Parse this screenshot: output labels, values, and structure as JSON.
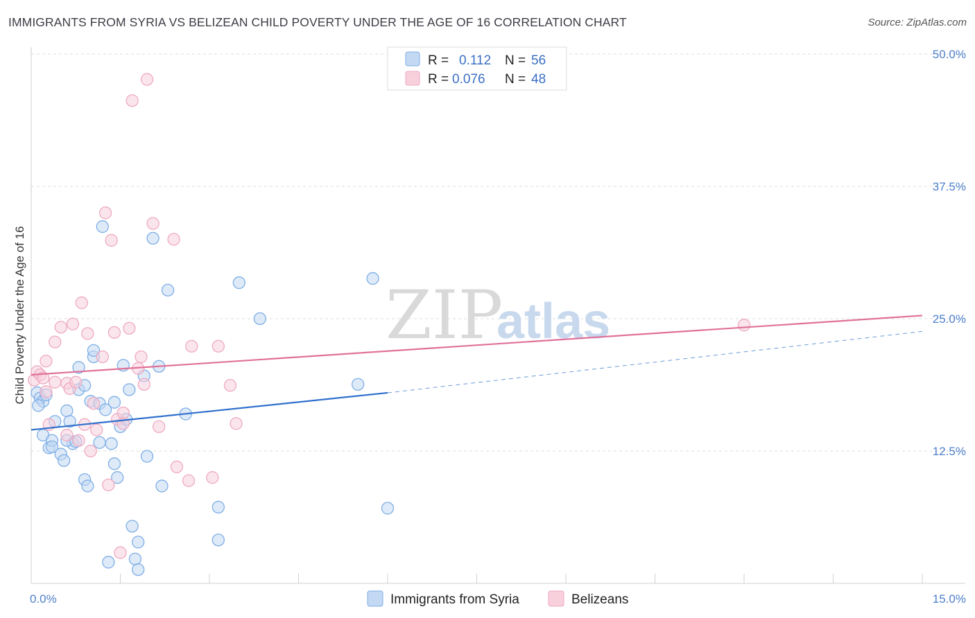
{
  "chart_data": {
    "type": "scatter",
    "title": "IMMIGRANTS FROM SYRIA VS BELIZEAN CHILD POVERTY UNDER THE AGE OF 16 CORRELATION CHART",
    "source": "Source: ZipAtlas.com",
    "ylabel": "Child Poverty Under the Age of 16",
    "xlim": [
      0,
      15
    ],
    "ylim": [
      0,
      50
    ],
    "x_tick_labels": [
      {
        "value": 0,
        "label": "0.0%"
      },
      {
        "value": 15,
        "label": "15.0%"
      }
    ],
    "y_tick_labels": [
      {
        "value": 12.5,
        "label": "12.5%"
      },
      {
        "value": 25,
        "label": "25.0%"
      },
      {
        "value": 37.5,
        "label": "37.5%"
      },
      {
        "value": 50,
        "label": "50.0%"
      }
    ],
    "watermark": {
      "left": "ZIP",
      "right": "atlas"
    },
    "legend_stats": [
      {
        "r_label": "R =",
        "r_value": "0.112",
        "n_label": "N =",
        "n_value": "56"
      },
      {
        "r_label": "R =",
        "r_value": "0.076",
        "n_label": "N =",
        "n_value": "48"
      }
    ],
    "series": [
      {
        "name": "Immigrants from Syria",
        "color": "#7eaee6",
        "fill": "#c2d8f3",
        "line_color": "#2f6fcc",
        "trend": {
          "x0": 0,
          "y0": 14.5,
          "x1": 6.0,
          "y1": 18.0,
          "dash_x1": 15.0,
          "dash_y1": 23.8
        },
        "points": [
          [
            0.1,
            18.0
          ],
          [
            0.15,
            17.5
          ],
          [
            0.2,
            17.2
          ],
          [
            0.12,
            16.8
          ],
          [
            0.25,
            17.8
          ],
          [
            0.2,
            14.0
          ],
          [
            0.3,
            12.8
          ],
          [
            0.35,
            13.5
          ],
          [
            0.4,
            15.3
          ],
          [
            0.35,
            12.9
          ],
          [
            0.5,
            12.2
          ],
          [
            0.55,
            11.6
          ],
          [
            0.6,
            16.3
          ],
          [
            0.7,
            13.2
          ],
          [
            0.6,
            13.5
          ],
          [
            0.75,
            13.4
          ],
          [
            0.8,
            18.3
          ],
          [
            0.8,
            20.4
          ],
          [
            0.9,
            18.7
          ],
          [
            0.9,
            9.8
          ],
          [
            0.95,
            9.2
          ],
          [
            1.0,
            17.2
          ],
          [
            1.05,
            21.4
          ],
          [
            1.05,
            22.0
          ],
          [
            1.15,
            17.0
          ],
          [
            1.15,
            13.3
          ],
          [
            1.2,
            33.7
          ],
          [
            1.25,
            16.4
          ],
          [
            1.35,
            13.2
          ],
          [
            1.4,
            11.3
          ],
          [
            1.4,
            17.1
          ],
          [
            1.45,
            10.0
          ],
          [
            1.5,
            14.8
          ],
          [
            1.55,
            20.6
          ],
          [
            1.6,
            15.5
          ],
          [
            1.65,
            18.3
          ],
          [
            1.7,
            5.4
          ],
          [
            1.75,
            2.3
          ],
          [
            1.8,
            3.9
          ],
          [
            1.8,
            1.3
          ],
          [
            1.9,
            19.6
          ],
          [
            1.95,
            12.0
          ],
          [
            2.05,
            32.6
          ],
          [
            2.15,
            20.5
          ],
          [
            2.2,
            9.2
          ],
          [
            2.3,
            27.7
          ],
          [
            2.6,
            16.0
          ],
          [
            3.15,
            7.2
          ],
          [
            3.15,
            4.1
          ],
          [
            3.5,
            28.4
          ],
          [
            3.85,
            25.0
          ],
          [
            5.5,
            18.8
          ],
          [
            5.75,
            28.8
          ],
          [
            6.0,
            7.1
          ],
          [
            0.65,
            15.3
          ],
          [
            1.3,
            2.0
          ]
        ]
      },
      {
        "name": "Belizeans",
        "color": "#eeaac0",
        "fill": "#f8d0dc",
        "line_color": "#e07099",
        "trend": {
          "x0": 0,
          "y0": 19.7,
          "x1": 15.0,
          "y1": 25.3
        },
        "points": [
          [
            0.05,
            19.2
          ],
          [
            0.1,
            20.0
          ],
          [
            0.15,
            19.7
          ],
          [
            0.2,
            19.4
          ],
          [
            0.25,
            18.1
          ],
          [
            0.25,
            21.0
          ],
          [
            0.3,
            15.0
          ],
          [
            0.4,
            19.0
          ],
          [
            0.4,
            22.8
          ],
          [
            0.5,
            24.2
          ],
          [
            0.6,
            18.9
          ],
          [
            0.6,
            14.0
          ],
          [
            0.65,
            18.4
          ],
          [
            0.7,
            24.5
          ],
          [
            0.75,
            19.0
          ],
          [
            0.8,
            13.5
          ],
          [
            0.85,
            26.5
          ],
          [
            0.9,
            15.0
          ],
          [
            0.95,
            23.6
          ],
          [
            1.0,
            12.5
          ],
          [
            1.05,
            17.0
          ],
          [
            1.1,
            14.5
          ],
          [
            1.2,
            21.4
          ],
          [
            1.25,
            35.0
          ],
          [
            1.3,
            9.3
          ],
          [
            1.35,
            32.4
          ],
          [
            1.4,
            23.7
          ],
          [
            1.45,
            15.5
          ],
          [
            1.5,
            2.9
          ],
          [
            1.55,
            16.1
          ],
          [
            1.55,
            15.1
          ],
          [
            1.65,
            24.1
          ],
          [
            1.7,
            45.6
          ],
          [
            1.8,
            20.3
          ],
          [
            1.85,
            21.4
          ],
          [
            1.9,
            18.8
          ],
          [
            1.95,
            47.6
          ],
          [
            2.05,
            34.0
          ],
          [
            2.15,
            14.8
          ],
          [
            2.4,
            32.5
          ],
          [
            2.45,
            11.0
          ],
          [
            2.65,
            9.7
          ],
          [
            2.7,
            22.4
          ],
          [
            3.05,
            10.0
          ],
          [
            3.15,
            22.4
          ],
          [
            3.35,
            18.7
          ],
          [
            3.45,
            15.1
          ],
          [
            12.0,
            24.4
          ]
        ]
      }
    ]
  }
}
